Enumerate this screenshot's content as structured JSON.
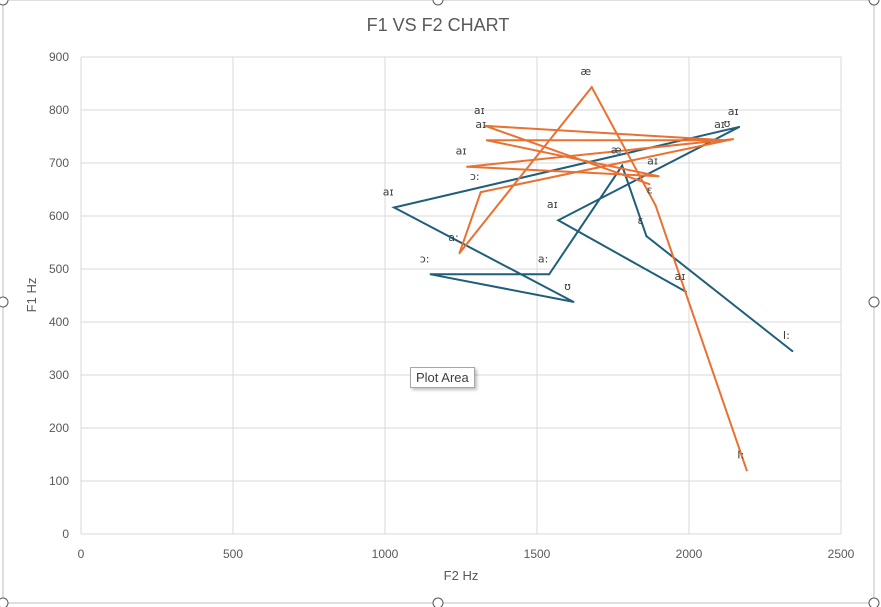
{
  "chart_data": {
    "type": "scatter",
    "title": "F1 VS F2 CHART",
    "xlabel": "F2 Hz",
    "ylabel": "F1 Hz",
    "xlim": [
      0,
      2500
    ],
    "ylim": [
      0,
      900
    ],
    "xticks": [
      0,
      500,
      1000,
      1500,
      2000,
      2500
    ],
    "yticks": [
      0,
      100,
      200,
      300,
      400,
      500,
      600,
      700,
      800,
      900
    ],
    "grid": true,
    "legend": "none",
    "series": [
      {
        "color": "#1f5f7a",
        "points": [
          {
            "x": 2340,
            "y": 345,
            "label": "I:"
          },
          {
            "x": 1860,
            "y": 562,
            "label": "ɛ"
          },
          {
            "x": 1780,
            "y": 695,
            "label": "æ"
          },
          {
            "x": 1540,
            "y": 490,
            "label": "a:"
          },
          {
            "x": 1150,
            "y": 490,
            "label": "ɔ:"
          },
          {
            "x": 1620,
            "y": 438,
            "label": "ʊ"
          },
          {
            "x": 1030,
            "y": 616,
            "label": "aɪ"
          },
          {
            "x": 2165,
            "y": 768,
            "label": "aɪ"
          },
          {
            "x": 1570,
            "y": 592,
            "label": "aɪ"
          },
          {
            "x": 1990,
            "y": 457,
            "label": "aɪ"
          }
        ]
      },
      {
        "color": "#e97132",
        "points": [
          {
            "x": 2190,
            "y": 120,
            "label": "I:"
          },
          {
            "x": 1890,
            "y": 620,
            "label": "ɛ"
          },
          {
            "x": 1680,
            "y": 843,
            "label": "æ"
          },
          {
            "x": 1245,
            "y": 530,
            "label": "a:"
          },
          {
            "x": 1315,
            "y": 645,
            "label": "ɔ:"
          },
          {
            "x": 2145,
            "y": 745,
            "label": "ʊ"
          },
          {
            "x": 1270,
            "y": 693,
            "label": "aɪ"
          },
          {
            "x": 1900,
            "y": 675,
            "label": "aɪ"
          },
          {
            "x": 1335,
            "y": 743,
            "label": "aɪ"
          },
          {
            "x": 2120,
            "y": 743,
            "label": "aɪ"
          },
          {
            "x": 1330,
            "y": 770,
            "label": "aɪ"
          },
          {
            "x": 1870,
            "y": 660,
            "label": ""
          }
        ]
      }
    ],
    "annotation": "Plot Area"
  }
}
